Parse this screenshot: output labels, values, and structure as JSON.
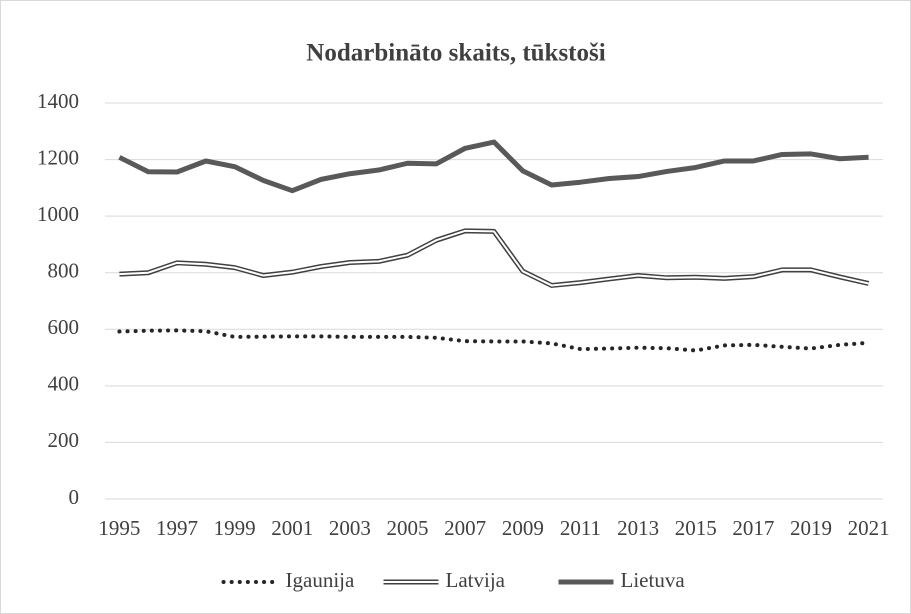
{
  "chart_data": {
    "type": "line",
    "title": "Nodarbināto skaits, tūkstoši",
    "categories": [
      "1995",
      null,
      "1997",
      null,
      "1999",
      null,
      "2001",
      null,
      "2003",
      null,
      "2005",
      null,
      "2007",
      null,
      "2009",
      null,
      "2011",
      null,
      "2013",
      null,
      "2015",
      null,
      "2017",
      null,
      "2019",
      null,
      "2021"
    ],
    "series": [
      {
        "name": "Igaunija",
        "color": "#262626",
        "style": "dotted",
        "values": [
          592,
          595,
          596,
          593,
          573,
          574,
          575,
          575,
          573,
          573,
          573,
          570,
          558,
          557,
          557,
          550,
          530,
          532,
          535,
          533,
          525,
          543,
          545,
          538,
          532,
          545,
          552
        ]
      },
      {
        "name": "Latvija",
        "color": "#404040",
        "style": "double",
        "values": [
          795,
          800,
          835,
          830,
          818,
          790,
          802,
          822,
          836,
          840,
          862,
          915,
          948,
          946,
          805,
          755,
          765,
          778,
          790,
          782,
          784,
          780,
          786,
          810,
          810,
          785,
          762
        ]
      },
      {
        "name": "Lietuva",
        "color": "#595959",
        "style": "solid",
        "values": [
          1208,
          1157,
          1156,
          1195,
          1175,
          1126,
          1090,
          1130,
          1150,
          1163,
          1187,
          1185,
          1240,
          1262,
          1160,
          1110,
          1120,
          1133,
          1140,
          1158,
          1172,
          1195,
          1195,
          1218,
          1220,
          1203,
          1208
        ]
      }
    ],
    "ylim": [
      0,
      1400
    ],
    "yticks": [
      0,
      200,
      400,
      600,
      800,
      1000,
      1200,
      1400
    ],
    "grid": true,
    "legend": "bottom"
  }
}
